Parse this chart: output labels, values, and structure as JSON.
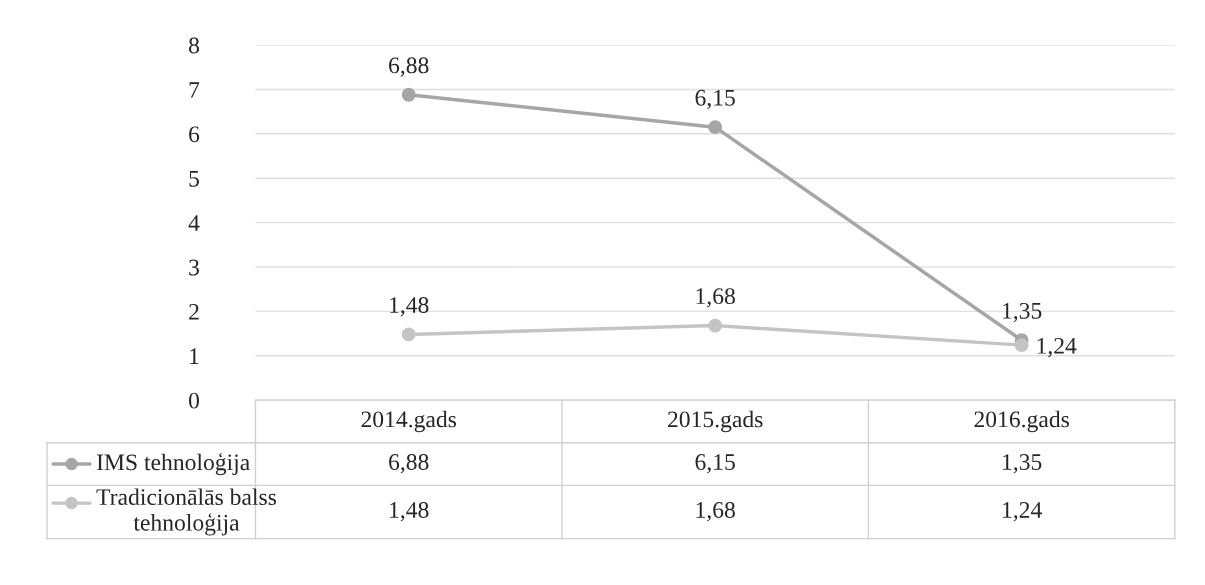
{
  "chart_data": {
    "type": "line",
    "categories": [
      "2014.gads",
      "2015.gads",
      "2016.gads"
    ],
    "series": [
      {
        "name": "IMS tehnoloģija",
        "color": "#a6a6a6",
        "values": [
          6.88,
          6.15,
          1.35
        ],
        "value_labels": [
          "6,88",
          "6,15",
          "1,35"
        ]
      },
      {
        "name": "Tradicionālās balss\ntehnoloģija",
        "color": "#c4c4c4",
        "values": [
          1.48,
          1.68,
          1.24
        ],
        "value_labels": [
          "1,48",
          "1,68",
          "1,24"
        ]
      }
    ],
    "ylim": [
      0,
      8
    ],
    "yticks": [
      0,
      1,
      2,
      3,
      4,
      5,
      6,
      7,
      8
    ],
    "grid": "y",
    "marker": "circle",
    "line_style": "solid",
    "legend": "bottom"
  }
}
